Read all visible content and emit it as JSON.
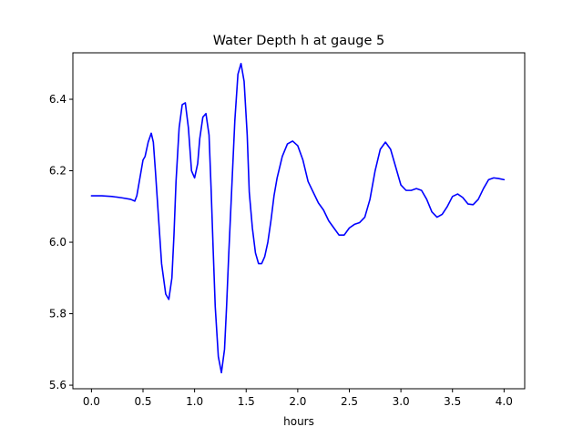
{
  "chart_data": {
    "type": "line",
    "title": "Water Depth h at gauge 5",
    "xlabel": "hours",
    "ylabel": "",
    "xlim": [
      -0.18,
      4.2
    ],
    "ylim": [
      5.59,
      6.53
    ],
    "xticks": [
      0.0,
      0.5,
      1.0,
      1.5,
      2.0,
      2.5,
      3.0,
      3.5,
      4.0
    ],
    "xtick_labels": [
      "0.0",
      "0.5",
      "1.0",
      "1.5",
      "2.0",
      "2.5",
      "3.0",
      "3.5",
      "4.0"
    ],
    "yticks": [
      5.6,
      5.8,
      6.0,
      6.2,
      6.4
    ],
    "ytick_labels": [
      "5.6",
      "5.8",
      "6.0",
      "6.2",
      "6.4"
    ],
    "grid": false,
    "legend": "none",
    "series": [
      {
        "color": "#0000ff",
        "x": [
          0.0,
          0.1,
          0.2,
          0.3,
          0.38,
          0.42,
          0.44,
          0.47,
          0.5,
          0.52,
          0.55,
          0.58,
          0.6,
          0.62,
          0.65,
          0.68,
          0.72,
          0.75,
          0.78,
          0.8,
          0.82,
          0.85,
          0.88,
          0.91,
          0.94,
          0.97,
          1.0,
          1.03,
          1.05,
          1.08,
          1.11,
          1.14,
          1.16,
          1.18,
          1.2,
          1.23,
          1.26,
          1.29,
          1.31,
          1.33,
          1.36,
          1.39,
          1.42,
          1.45,
          1.48,
          1.51,
          1.53,
          1.56,
          1.59,
          1.62,
          1.65,
          1.68,
          1.71,
          1.74,
          1.77,
          1.8,
          1.85,
          1.9,
          1.95,
          2.0,
          2.05,
          2.1,
          2.15,
          2.2,
          2.25,
          2.3,
          2.35,
          2.4,
          2.45,
          2.5,
          2.55,
          2.6,
          2.65,
          2.7,
          2.75,
          2.8,
          2.85,
          2.9,
          2.95,
          3.0,
          3.05,
          3.1,
          3.15,
          3.2,
          3.25,
          3.3,
          3.35,
          3.4,
          3.45,
          3.5,
          3.55,
          3.6,
          3.65,
          3.7,
          3.75,
          3.8,
          3.85,
          3.9,
          3.95,
          4.0
        ],
        "y": [
          6.13,
          6.13,
          6.128,
          6.124,
          6.12,
          6.115,
          6.13,
          6.18,
          6.23,
          6.24,
          6.28,
          6.305,
          6.28,
          6.2,
          6.07,
          5.94,
          5.855,
          5.84,
          5.9,
          6.02,
          6.17,
          6.32,
          6.385,
          6.39,
          6.32,
          6.2,
          6.18,
          6.22,
          6.29,
          6.35,
          6.36,
          6.3,
          6.15,
          5.98,
          5.82,
          5.68,
          5.635,
          5.7,
          5.82,
          5.96,
          6.15,
          6.34,
          6.47,
          6.5,
          6.45,
          6.3,
          6.14,
          6.04,
          5.97,
          5.94,
          5.94,
          5.96,
          6.0,
          6.06,
          6.13,
          6.18,
          6.24,
          6.275,
          6.283,
          6.27,
          6.23,
          6.17,
          6.14,
          6.11,
          6.09,
          6.06,
          6.04,
          6.02,
          6.02,
          6.04,
          6.05,
          6.055,
          6.07,
          6.12,
          6.2,
          6.26,
          6.28,
          6.26,
          6.21,
          6.16,
          6.145,
          6.145,
          6.15,
          6.145,
          6.12,
          6.085,
          6.07,
          6.078,
          6.1,
          6.128,
          6.135,
          6.125,
          6.107,
          6.105,
          6.12,
          6.15,
          6.175,
          6.18,
          6.178,
          6.175
        ]
      }
    ]
  }
}
